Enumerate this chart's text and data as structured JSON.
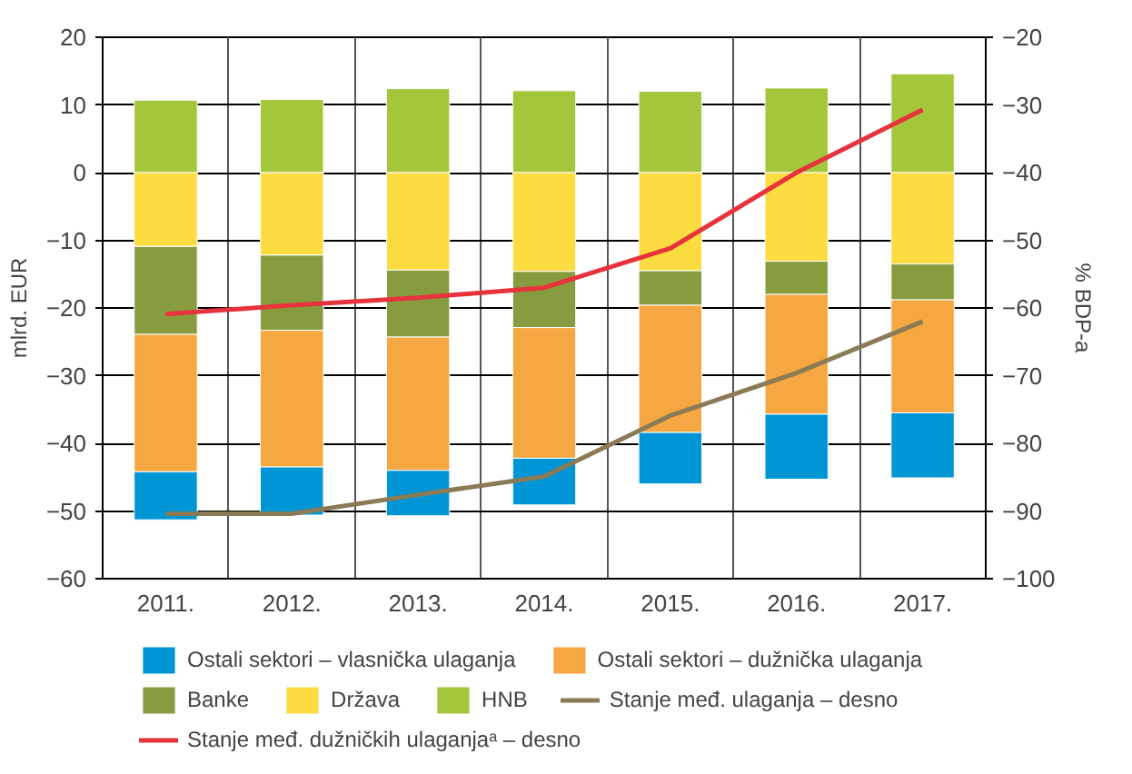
{
  "chart_data": {
    "type": "bar",
    "stacked": true,
    "ylabel": "mlrd. EUR",
    "y2label": "% BDP-a",
    "categories": [
      "2011.",
      "2012.",
      "2013.",
      "2014.",
      "2015.",
      "2016.",
      "2017."
    ],
    "ylim": [
      -60,
      20
    ],
    "yticks": [
      -60,
      -50,
      -40,
      -30,
      -20,
      -10,
      0,
      10,
      20
    ],
    "y2lim": [
      -100,
      -20
    ],
    "y2ticks": [
      -100,
      -90,
      -80,
      -70,
      -60,
      -50,
      -40,
      -30,
      -20
    ],
    "grid": true,
    "legend": "bottom",
    "series": [
      {
        "name": "HNB",
        "color": "#a3c63b",
        "values": [
          10.7,
          10.8,
          12.4,
          12.1,
          12.0,
          12.5,
          14.6
        ]
      },
      {
        "name": "Država",
        "color": "#fddc42",
        "values": [
          -10.9,
          -12.2,
          -14.4,
          -14.6,
          -14.5,
          -13.1,
          -13.5
        ]
      },
      {
        "name": "Banke",
        "color": "#879c3f",
        "values": [
          -13.0,
          -11.1,
          -9.9,
          -8.3,
          -5.1,
          -4.9,
          -5.3
        ]
      },
      {
        "name": "Ostali sektori – dužnička ulaganja",
        "color": "#f5a742",
        "values": [
          -20.3,
          -20.2,
          -19.7,
          -19.3,
          -18.8,
          -17.7,
          -16.7
        ]
      },
      {
        "name": "Ostali sektori – vlasnička ulaganja",
        "color": "#0096d6",
        "values": [
          -7.1,
          -7.1,
          -6.7,
          -6.9,
          -7.6,
          -9.6,
          -9.6
        ]
      },
      {
        "name": "Stanje međ. ulaganja – desno",
        "type": "line",
        "axis": "y2",
        "color": "#8a7a55",
        "values": [
          -90.4,
          -90.4,
          -87.6,
          -84.9,
          -75.9,
          -69.6,
          -62.0
        ]
      },
      {
        "name": "Stanje međ. dužničkih ulaganjaᵃ – desno",
        "type": "line",
        "axis": "y2",
        "color": "#e8323c",
        "values": [
          -60.9,
          -59.6,
          -58.5,
          -57.0,
          -51.2,
          -40.0,
          -30.7
        ]
      }
    ]
  }
}
